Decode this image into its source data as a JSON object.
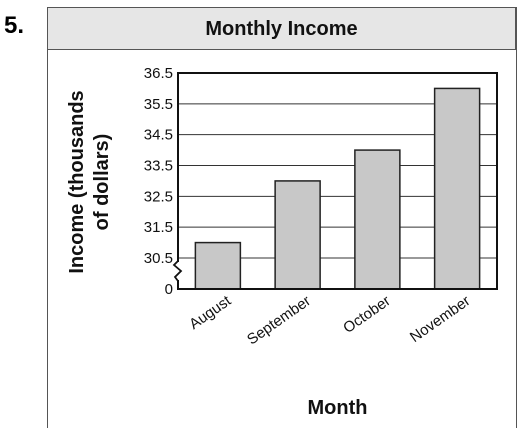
{
  "problem_number": "5.",
  "chart_data": {
    "type": "bar",
    "title": "Monthly Income",
    "xlabel": "Month",
    "ylabel": "Income (thousands of dollars)",
    "ylabel_lines": [
      "Income (thousands",
      "of dollars)"
    ],
    "categories": [
      "August",
      "September",
      "October",
      "November"
    ],
    "values": [
      31,
      33,
      34,
      36
    ],
    "ylim": [
      30,
      36.5
    ],
    "yticks": [
      30.5,
      31.5,
      32.5,
      33.5,
      34.5,
      35.5,
      36.5
    ],
    "ytick_labels": [
      "30.5",
      "31.5",
      "32.5",
      "33.5",
      "34.5",
      "35.5",
      "36.5"
    ],
    "axis_break": true,
    "zero_label": "0",
    "grid": true,
    "bar_color": "#c8c8c8"
  }
}
